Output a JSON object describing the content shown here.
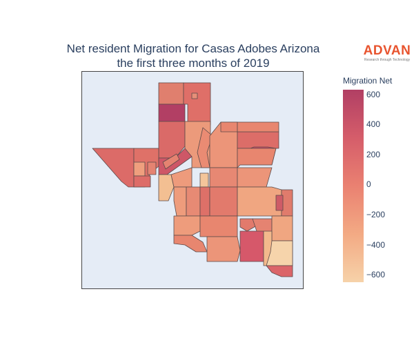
{
  "title": {
    "line1": "Net resident Migration for Casas Adobes Arizona",
    "line2": "the first three months of 2019"
  },
  "logo": {
    "word": "ADVAN",
    "tagline": "Research through Technology",
    "color": "#e8542f"
  },
  "colorbar": {
    "title": "Migration Net",
    "min": -650,
    "max": 630,
    "ticks": [
      "600",
      "400",
      "200",
      "0",
      "−200",
      "−400",
      "−600"
    ],
    "tick_values": [
      600,
      400,
      200,
      0,
      -200,
      -400,
      -600
    ],
    "colors": [
      "#f6d2a9",
      "#f3aa84",
      "#ea8171",
      "#d55d6a",
      "#b13f64"
    ]
  },
  "map": {
    "background": "#e5ecf6",
    "frame_color": "#444444",
    "border_color": "#5a4a4a"
  }
}
